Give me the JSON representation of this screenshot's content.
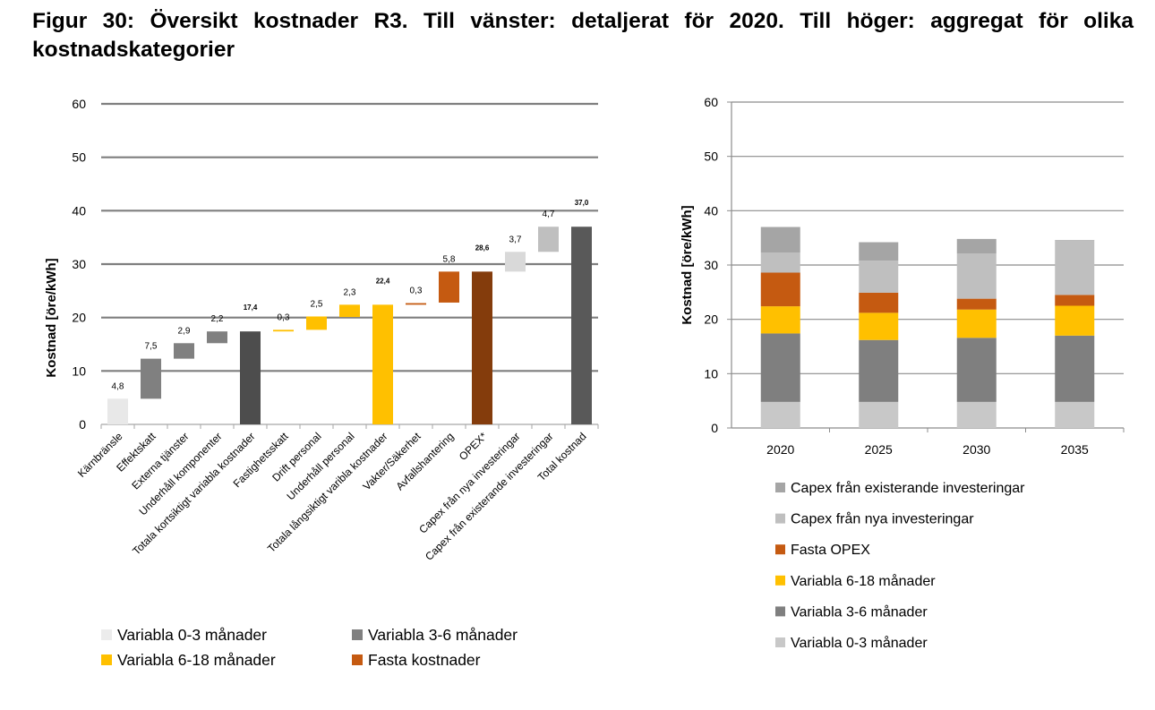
{
  "figure": {
    "title": "Figur 30: Översikt kostnader R3. Till vänster: detaljerat för 2020. Till höger: aggregat för olika kostnadskategorier"
  },
  "chart_data": [
    {
      "type": "bar",
      "subtype": "waterfall",
      "ylabel": "Kostnad [öre/kWh]",
      "ylim": [
        0,
        60
      ],
      "yticks": [
        0,
        10,
        20,
        30,
        40,
        50,
        60
      ],
      "grid": true,
      "categories": [
        "Kärnbränsle",
        "Effektskatt",
        "Externa tjänster",
        "Underhåll komponenter",
        "Totala kortsiktigt variabla kostnader",
        "Fastighetsskatt",
        "Drift personal",
        "Underhåll personal",
        "Totala långsiktigt varibla kostnader",
        "Vakter/Säkerhet",
        "Avfallshantering",
        "OPEX*",
        "Capex från nya investeringar",
        "Capex från existerande investeringar",
        "Total kostnad"
      ],
      "bars": [
        {
          "base": 0,
          "value": 4.8,
          "label": "4,8",
          "color": "#e8e8e8",
          "total": false
        },
        {
          "base": 4.8,
          "value": 7.5,
          "label": "7,5",
          "color": "#808080",
          "total": false
        },
        {
          "base": 12.3,
          "value": 2.9,
          "label": "2,9",
          "color": "#808080",
          "total": false
        },
        {
          "base": 15.2,
          "value": 2.2,
          "label": "2,2",
          "color": "#808080",
          "total": false
        },
        {
          "base": 0,
          "value": 17.4,
          "label": "17,4",
          "color": "#4d4d4d",
          "total": true
        },
        {
          "base": 17.4,
          "value": 0.3,
          "label": "0,3",
          "color": "#ffc000",
          "total": false
        },
        {
          "base": 17.7,
          "value": 2.5,
          "label": "2,5",
          "color": "#ffc000",
          "total": false
        },
        {
          "base": 20.1,
          "value": 2.3,
          "label": "2,3",
          "color": "#ffc000",
          "total": false
        },
        {
          "base": 0,
          "value": 22.4,
          "label": "22,4",
          "color": "#ffc000",
          "total": true
        },
        {
          "base": 22.4,
          "value": 0.3,
          "label": "0,3",
          "color": "#c55a11",
          "total": false
        },
        {
          "base": 22.8,
          "value": 5.8,
          "label": "5,8",
          "color": "#c55a11",
          "total": false
        },
        {
          "base": 0,
          "value": 28.6,
          "label": "28,6",
          "color": "#843c0c",
          "total": true
        },
        {
          "base": 28.6,
          "value": 3.7,
          "label": "3,7",
          "color": "#d9d9d9",
          "total": false
        },
        {
          "base": 32.3,
          "value": 4.7,
          "label": "4,7",
          "color": "#bfbfbf",
          "total": false
        },
        {
          "base": 0,
          "value": 37.0,
          "label": "37,0",
          "color": "#595959",
          "total": true
        }
      ],
      "legend": [
        {
          "name": "Variabla 0-3 månader",
          "color": "#ececec"
        },
        {
          "name": "Variabla 3-6 månader",
          "color": "#808080"
        },
        {
          "name": "Variabla 6-18 månader",
          "color": "#ffc000"
        },
        {
          "name": "Fasta kostnader",
          "color": "#c55a11"
        }
      ]
    },
    {
      "type": "bar",
      "subtype": "stacked",
      "ylabel": "Kostnad [öre/kWh]",
      "ylim": [
        0,
        60
      ],
      "yticks": [
        0,
        10,
        20,
        30,
        40,
        50,
        60
      ],
      "grid": true,
      "categories": [
        "2020",
        "2025",
        "2030",
        "2035"
      ],
      "series": [
        {
          "name": "Variabla 0-3 månader",
          "color": "#c8c8c8",
          "values": [
            4.8,
            4.8,
            4.8,
            4.8
          ]
        },
        {
          "name": "Variabla 3-6 månader",
          "color": "#7f7f7f",
          "values": [
            12.6,
            11.4,
            11.8,
            12.2
          ]
        },
        {
          "name": "Variabla 6-18 månader",
          "color": "#ffc000",
          "values": [
            5.0,
            5.0,
            5.2,
            5.5
          ]
        },
        {
          "name": "Fasta OPEX",
          "color": "#c55a11",
          "values": [
            6.2,
            3.7,
            2.0,
            2.0
          ]
        },
        {
          "name": "Capex från nya investeringar",
          "color": "#bfbfbf",
          "values": [
            3.7,
            5.9,
            8.3,
            10.0
          ]
        },
        {
          "name": "Capex från existerande investeringar",
          "color": "#a5a5a5",
          "values": [
            4.7,
            3.4,
            2.7,
            0.1
          ]
        }
      ],
      "legend_order": [
        "Capex från existerande investeringar",
        "Capex från nya investeringar",
        "Fasta OPEX",
        "Variabla 6-18 månader",
        "Variabla 3-6 månader",
        "Variabla 0-3 månader"
      ]
    }
  ]
}
